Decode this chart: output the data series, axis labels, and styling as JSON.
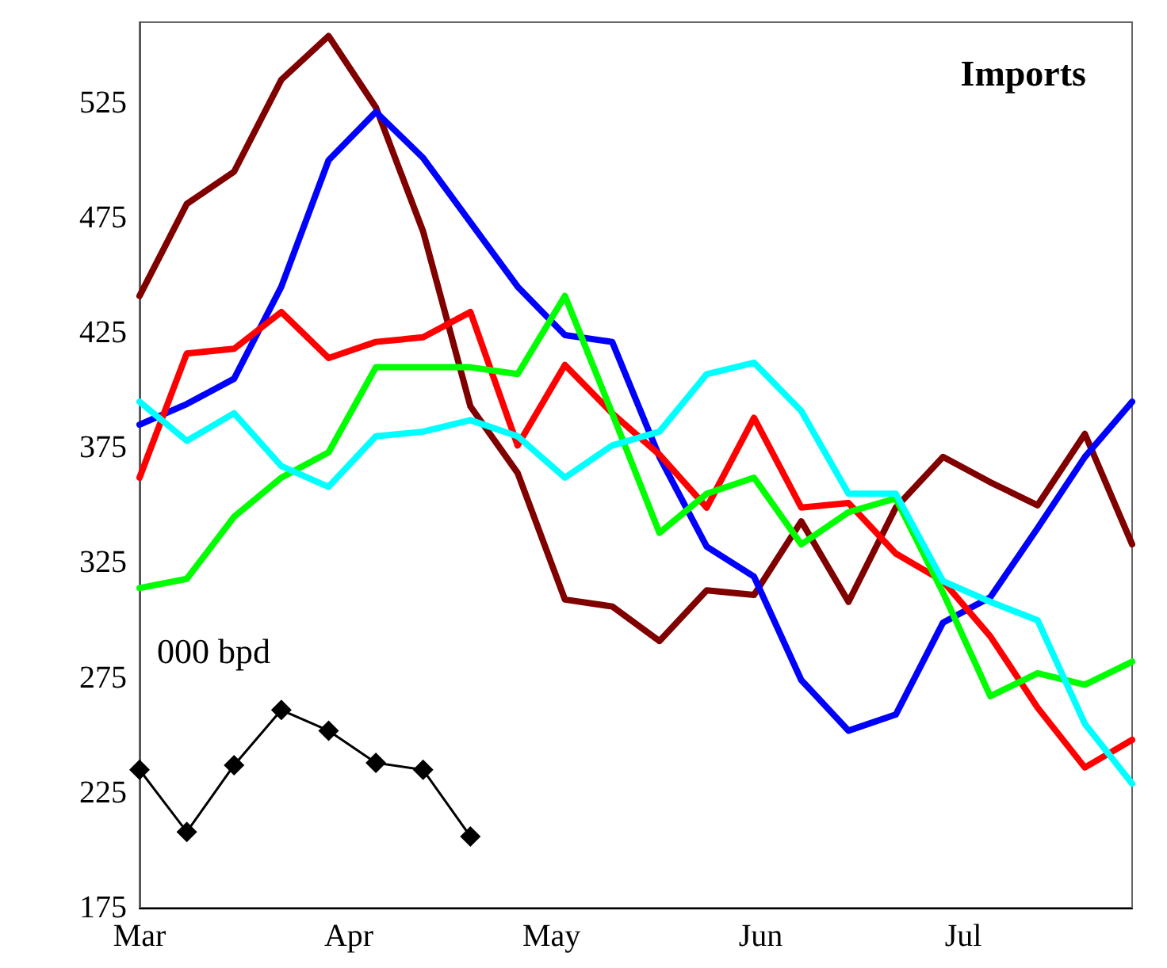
{
  "chart_data": {
    "type": "line",
    "title": "Imports",
    "ylabel": "000 bpd",
    "x": [
      "--03-01",
      "--03-08",
      "--03-15",
      "--03-22",
      "--03-29",
      "--04-05",
      "--04-12",
      "--04-19",
      "--04-26",
      "--05-03",
      "--05-10",
      "--05-17",
      "--05-24",
      "--05-31",
      "--06-07",
      "--06-14",
      "--06-21",
      "--06-28",
      "--07-05",
      "--07-12",
      "--07-19",
      "--07-26"
    ],
    "series": [
      {
        "color": "#800000",
        "values": [
          441,
          481,
          495,
          535,
          554,
          523,
          469,
          393,
          364,
          309,
          306,
          291,
          313,
          311,
          343,
          308,
          349,
          371,
          360,
          350,
          381,
          333
        ]
      },
      {
        "color": "#0000ff",
        "values": [
          385,
          394,
          405,
          445,
          500,
          521,
          501,
          473,
          445,
          424,
          421,
          371,
          332,
          319,
          274,
          252,
          259,
          299,
          310,
          340,
          371,
          395
        ]
      },
      {
        "color": "#ff0000",
        "values": [
          362,
          416,
          418,
          434,
          414,
          421,
          423,
          434,
          376,
          411,
          390,
          372,
          349,
          388,
          349,
          351,
          329,
          317,
          293,
          262,
          236,
          248
        ]
      },
      {
        "color": "#00ff00",
        "values": [
          314,
          318,
          345,
          362,
          373,
          410,
          410,
          410,
          407,
          441,
          390,
          338,
          355,
          362,
          333,
          347,
          353,
          312,
          267,
          277,
          272,
          282
        ]
      },
      {
        "color": "#00ffff",
        "values": [
          395,
          378,
          390,
          367,
          358,
          380,
          382,
          387,
          380,
          362,
          376,
          382,
          407,
          412,
          391,
          355,
          355,
          317,
          308,
          300,
          255,
          229
        ]
      },
      {
        "color": "#000000",
        "marker": "diamond",
        "x": [
          "--03-01",
          "--03-08",
          "--03-15",
          "--03-22",
          "--03-29",
          "--04-05",
          "--04-12",
          "--04-19"
        ],
        "values": [
          235,
          208,
          237,
          261,
          252,
          238,
          235,
          206
        ]
      }
    ],
    "xlim": [
      "--03-01",
      "--07-26"
    ],
    "xticks": [
      {
        "value": "--03-01",
        "label": "Mar"
      },
      {
        "value": "--04-01",
        "label": "Apr"
      },
      {
        "value": "--05-01",
        "label": "May"
      },
      {
        "value": "--06-01",
        "label": "Jun"
      },
      {
        "value": "--07-01",
        "label": "Jul"
      }
    ],
    "ylim": [
      175,
      560
    ],
    "yticks": [
      175,
      225,
      275,
      325,
      375,
      425,
      475,
      525
    ],
    "grid": false,
    "marker": "none",
    "line_style": "solid"
  }
}
